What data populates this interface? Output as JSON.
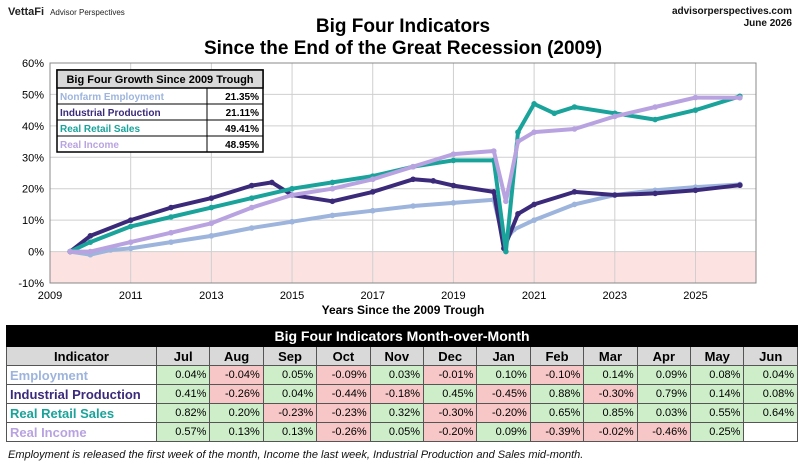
{
  "brand": {
    "logo": "VettaFi",
    "sub": "Advisor Perspectives"
  },
  "site": {
    "url": "advisorperspectives.com",
    "date": "June 2026"
  },
  "title": {
    "line1": "Big Four Indicators",
    "line2": "Since the End of the Great Recession (2009)"
  },
  "colors": {
    "employment": "#9db4dc",
    "industrial": "#3b2a7a",
    "retail": "#1aa39a",
    "income": "#b8a3e0",
    "negative_zone": "#fde2e2"
  },
  "chart_data": {
    "type": "line",
    "title": "Big Four Indicators Since the End of the Great Recession (2009)",
    "xlabel": "Years Since the 2009 Trough",
    "ylabel": "",
    "xlim": [
      2009,
      2026.5
    ],
    "ylim": [
      -10,
      60
    ],
    "x_ticks": [
      "2009",
      "2011",
      "2013",
      "2015",
      "2017",
      "2019",
      "2021",
      "2023",
      "2025"
    ],
    "y_ticks": [
      "60%",
      "50%",
      "40%",
      "30%",
      "20%",
      "10%",
      "0%",
      "-10%"
    ],
    "grid": true,
    "negative_region_shaded": true,
    "series": [
      {
        "name": "Nonfarm Employment",
        "color": "#9db4dc",
        "points": [
          [
            2009.5,
            0
          ],
          [
            2010,
            -1
          ],
          [
            2010.5,
            0.5
          ],
          [
            2011,
            1
          ],
          [
            2012,
            3
          ],
          [
            2013,
            5
          ],
          [
            2014,
            7.5
          ],
          [
            2015,
            9.5
          ],
          [
            2016,
            11.5
          ],
          [
            2017,
            13
          ],
          [
            2018,
            14.5
          ],
          [
            2019,
            15.5
          ],
          [
            2020,
            16.5
          ],
          [
            2020.25,
            3
          ],
          [
            2020.5,
            7
          ],
          [
            2021,
            10
          ],
          [
            2022,
            15
          ],
          [
            2023,
            18
          ],
          [
            2024,
            19.5
          ],
          [
            2025,
            20.5
          ],
          [
            2026.1,
            21.35
          ]
        ]
      },
      {
        "name": "Industrial Production",
        "color": "#3b2a7a",
        "points": [
          [
            2009.5,
            0
          ],
          [
            2010,
            5
          ],
          [
            2011,
            10
          ],
          [
            2012,
            14
          ],
          [
            2013,
            17
          ],
          [
            2014,
            21
          ],
          [
            2014.5,
            22
          ],
          [
            2015,
            18
          ],
          [
            2016,
            16
          ],
          [
            2017,
            19
          ],
          [
            2018,
            23
          ],
          [
            2018.5,
            22.5
          ],
          [
            2019,
            21
          ],
          [
            2020,
            19
          ],
          [
            2020.25,
            1
          ],
          [
            2020.6,
            12
          ],
          [
            2021,
            15
          ],
          [
            2022,
            19
          ],
          [
            2023,
            18
          ],
          [
            2024,
            18.5
          ],
          [
            2025,
            19.5
          ],
          [
            2026.1,
            21.11
          ]
        ]
      },
      {
        "name": "Real Retail Sales",
        "color": "#1aa39a",
        "points": [
          [
            2009.5,
            0
          ],
          [
            2010,
            3
          ],
          [
            2011,
            8
          ],
          [
            2012,
            11
          ],
          [
            2013,
            14
          ],
          [
            2014,
            17
          ],
          [
            2015,
            20
          ],
          [
            2016,
            22
          ],
          [
            2017,
            24
          ],
          [
            2018,
            27
          ],
          [
            2019,
            29
          ],
          [
            2020,
            29
          ],
          [
            2020.3,
            0
          ],
          [
            2020.6,
            38
          ],
          [
            2021,
            47
          ],
          [
            2021.5,
            44
          ],
          [
            2022,
            46
          ],
          [
            2023,
            44
          ],
          [
            2024,
            42
          ],
          [
            2025,
            45
          ],
          [
            2026.1,
            49.41
          ]
        ]
      },
      {
        "name": "Real Income",
        "color": "#b8a3e0",
        "points": [
          [
            2009.5,
            0
          ],
          [
            2010,
            0
          ],
          [
            2011,
            3
          ],
          [
            2012,
            6
          ],
          [
            2013,
            9
          ],
          [
            2014,
            14
          ],
          [
            2015,
            18
          ],
          [
            2016,
            20
          ],
          [
            2017,
            23
          ],
          [
            2018,
            27
          ],
          [
            2019,
            31
          ],
          [
            2020,
            32
          ],
          [
            2020.3,
            16
          ],
          [
            2020.6,
            35
          ],
          [
            2021,
            38
          ],
          [
            2022,
            39
          ],
          [
            2023,
            43
          ],
          [
            2024,
            46
          ],
          [
            2025,
            49
          ],
          [
            2026.1,
            48.95
          ]
        ]
      }
    ],
    "legend_table": {
      "title": "Big Four Growth Since 2009 Trough",
      "rows": [
        {
          "label": "Nonfarm Employment",
          "value": "21.35%"
        },
        {
          "label": "Industrial Production",
          "value": "21.11%"
        },
        {
          "label": "Real Retail Sales",
          "value": "49.41%"
        },
        {
          "label": "Real Income",
          "value": "48.95%"
        }
      ]
    }
  },
  "mom_table": {
    "title": "Big Four Indicators Month-over-Month",
    "header": "Indicator",
    "months": [
      "Jul",
      "Aug",
      "Sep",
      "Oct",
      "Nov",
      "Dec",
      "Jan",
      "Feb",
      "Mar",
      "Apr",
      "May",
      "Jun"
    ],
    "rows": [
      {
        "name": "Employment",
        "color": "#9db4dc",
        "values": [
          "0.04%",
          "-0.04%",
          "0.05%",
          "-0.09%",
          "0.03%",
          "-0.01%",
          "0.10%",
          "-0.10%",
          "0.14%",
          "0.09%",
          "0.08%",
          "0.04%"
        ]
      },
      {
        "name": "Industrial Production",
        "color": "#3b2a7a",
        "values": [
          "0.41%",
          "-0.26%",
          "0.04%",
          "-0.44%",
          "-0.18%",
          "0.45%",
          "-0.45%",
          "0.88%",
          "-0.30%",
          "0.79%",
          "0.14%",
          "0.08%"
        ]
      },
      {
        "name": "Real Retail Sales",
        "color": "#1aa39a",
        "values": [
          "0.82%",
          "0.20%",
          "-0.23%",
          "-0.23%",
          "0.32%",
          "-0.30%",
          "-0.20%",
          "0.65%",
          "0.85%",
          "0.03%",
          "0.55%",
          "0.64%"
        ]
      },
      {
        "name": "Real Income",
        "color": "#b8a3e0",
        "values": [
          "0.57%",
          "0.13%",
          "0.13%",
          "-0.26%",
          "0.05%",
          "-0.20%",
          "0.09%",
          "-0.39%",
          "-0.02%",
          "-0.46%",
          "0.25%",
          ""
        ]
      }
    ]
  },
  "footnote": "Employment is released the first week of the month, Income the last week, Industrial Production and Sales mid-month."
}
